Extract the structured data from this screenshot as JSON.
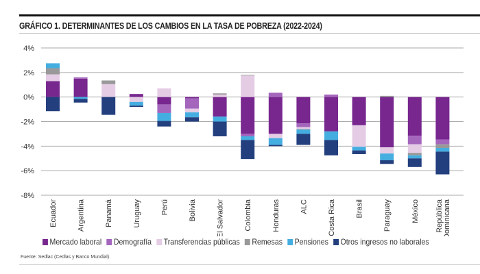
{
  "title": "GRÁFICO 1. DETERMINANTES DE LOS CAMBIOS EN LA TASA DE POBREZA (2022-2024)",
  "source": "Fuente: Sedlac (Cedlas y Banco Mundial).",
  "chart_data": {
    "type": "bar",
    "stacked": true,
    "title": "GRÁFICO 1. DETERMINANTES DE LOS CAMBIOS EN LA TASA DE POBREZA (2022-2024)",
    "xlabel": "",
    "ylabel": "",
    "ylim": [
      -8,
      4
    ],
    "yticks": [
      4,
      2,
      0,
      -2,
      -4,
      -6,
      -8
    ],
    "ytick_labels": [
      "4%",
      "2%",
      "0%",
      "-2%",
      "-4%",
      "-6%",
      "-8%"
    ],
    "grid": true,
    "legend_position": "bottom",
    "categories": [
      "Ecuador",
      "Argentina",
      "Panamá",
      "Uruguay",
      "Perú",
      "Bolivia",
      "El Salvador",
      "Colombia",
      "Honduras",
      "ALC",
      "Costa Rica",
      "Brasil",
      "Paraguay",
      "México",
      "República Dominicana"
    ],
    "series": [
      {
        "name": "Mercado laboral",
        "color": "#78278f",
        "values": [
          1.3,
          1.5,
          0,
          0.25,
          -0.6,
          -0.1,
          -1.6,
          -3.0,
          -3.0,
          -2.15,
          -2.8,
          -2.3,
          -4.1,
          -3.15,
          -3.45
        ]
      },
      {
        "name": "Demografía",
        "color": "#a466bd",
        "values": [
          0,
          0.1,
          0,
          0,
          -0.7,
          -0.85,
          0,
          -0.2,
          0.35,
          -0.3,
          0.2,
          0,
          0,
          -0.7,
          -0.4
        ]
      },
      {
        "name": "Transferencias públicas",
        "color": "#e5cce5",
        "values": [
          0.55,
          0,
          1.05,
          -0.4,
          0.7,
          -0.3,
          0.2,
          1.75,
          -0.35,
          -0.15,
          0,
          -1.75,
          -0.5,
          -0.7,
          0
        ]
      },
      {
        "name": "Remesas",
        "color": "#999999",
        "values": [
          0.5,
          0,
          0.3,
          0,
          0,
          0,
          0.1,
          0.05,
          0,
          -0.05,
          0,
          0,
          0.1,
          -0.2,
          -0.3
        ]
      },
      {
        "name": "Pensiones",
        "color": "#45aee0",
        "values": [
          0.4,
          -0.15,
          0,
          -0.3,
          -0.65,
          -0.4,
          -0.4,
          -0.3,
          -0.55,
          -0.35,
          -0.7,
          -0.3,
          -0.55,
          -0.25,
          -0.3
        ]
      },
      {
        "name": "Otros ingresos no laborales",
        "color": "#233f7e",
        "values": [
          -1.15,
          -0.3,
          -1.45,
          -0.1,
          -0.45,
          -0.35,
          -1.2,
          -1.55,
          -0.1,
          -0.9,
          -1.25,
          -0.3,
          -0.3,
          -0.7,
          -1.85
        ]
      }
    ]
  }
}
